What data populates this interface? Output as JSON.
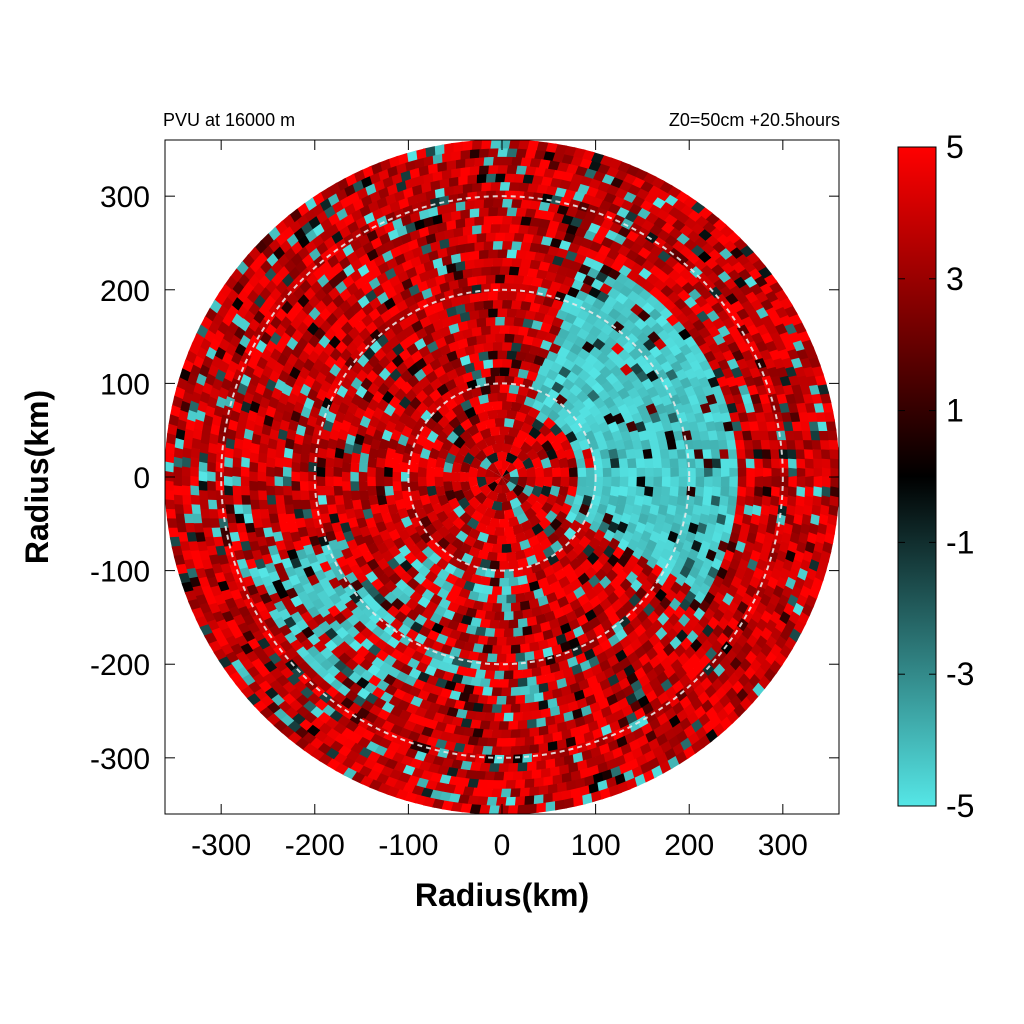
{
  "chart_data": {
    "type": "heatmap",
    "title_left": "PVU at 16000 m",
    "title_right": "Z0=50cm  +20.5hours",
    "xlabel": "Radius(km)",
    "ylabel": "Radius(km)",
    "xlim": [
      -360,
      360
    ],
    "ylim": [
      -360,
      360
    ],
    "domain_radius_km": 360,
    "x_ticks": [
      -300,
      -200,
      -100,
      0,
      100,
      200,
      300
    ],
    "y_ticks": [
      -300,
      -200,
      -100,
      0,
      100,
      200,
      300
    ],
    "tick_labels_x": [
      "-300",
      "-200",
      "-100",
      "0",
      "100",
      "200",
      "300"
    ],
    "tick_labels_y": [
      "-300",
      "-200",
      "-100",
      "0",
      "100",
      "200",
      "300"
    ],
    "reference_circles_km": [
      100,
      200,
      300
    ],
    "colorbar": {
      "min": -5,
      "max": 5,
      "ticks": [
        5,
        3,
        1,
        -1,
        -3,
        -5
      ],
      "tick_labels": [
        "5",
        "3",
        "1",
        "-1",
        "-3",
        "-5"
      ],
      "colors": {
        "low": "#55e6e6",
        "mid": "#000000",
        "high": "#ff0000"
      }
    },
    "negative_regions": [
      {
        "theta_from_deg": -30,
        "theta_to_deg": 70,
        "r_from_km": 80,
        "r_to_km": 250,
        "strength": 0.85
      },
      {
        "theta_from_deg": 200,
        "theta_to_deg": 240,
        "r_from_km": 190,
        "r_to_km": 290,
        "strength": 0.55
      },
      {
        "theta_from_deg": 0,
        "theta_to_deg": 360,
        "r_from_km": 0,
        "r_to_km": 95,
        "strength": 0.45
      },
      {
        "theta_from_deg": 215,
        "theta_to_deg": 280,
        "r_from_km": 100,
        "r_to_km": 240,
        "strength": 0.3
      }
    ]
  }
}
